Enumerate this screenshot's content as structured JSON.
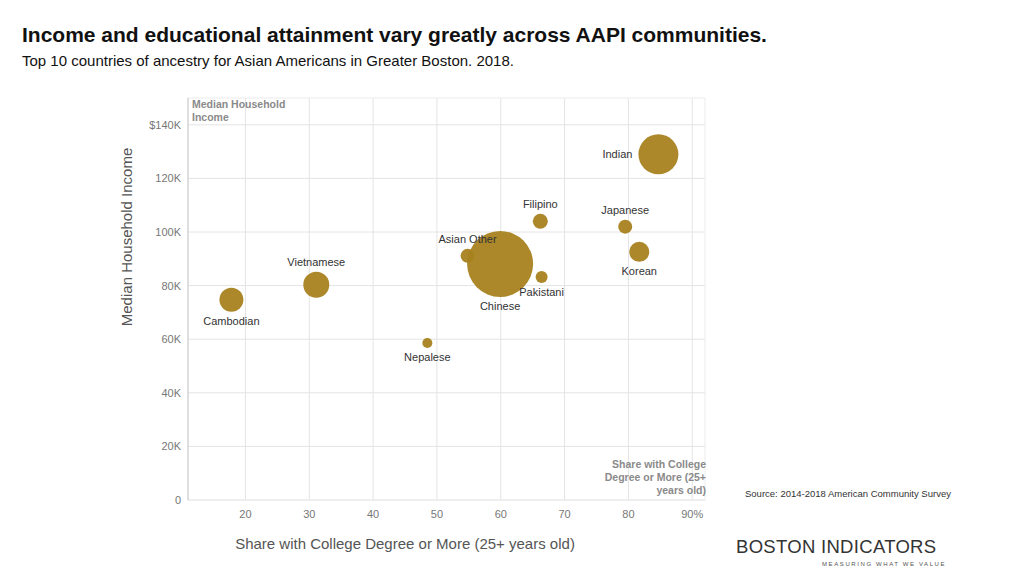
{
  "chart_data": {
    "type": "scatter",
    "title": "Income and educational attainment vary greatly across AAPI communities.",
    "subtitle": "Top 10 countries of ancestry for Asian Americans in Greater Boston. 2018.",
    "xlabel": "Share with College Degree or More (25+ years old)",
    "ylabel": "Median Household Income",
    "annotations": [
      "Median Household Income",
      "Share with College Degree or More (25+ years old)"
    ],
    "source": "Source: 2014-2018 American Community Survey",
    "logo_text": "BOSTON INDICATORS",
    "logo_tagline": "MEASURING WHAT WE VALUE",
    "labels": [
      "Indian",
      "Filipino",
      "Japanese",
      "Korean",
      "Asian Other",
      "Chinese",
      "Pakistani",
      "Vietnamese",
      "Cambodian",
      "Nepalese"
    ],
    "x": [
      84.7,
      66.2,
      79.5,
      81.7,
      54.8,
      59.9,
      66.4,
      31.1,
      17.8,
      48.5
    ],
    "values": [
      129000,
      104000,
      102000,
      92600,
      91100,
      88100,
      83200,
      80300,
      74700,
      58600
    ],
    "sizes": [
      400,
      56,
      49,
      100,
      49,
      1089,
      36,
      169,
      144,
      25
    ],
    "color": "#a8821f",
    "xlim": [
      11,
      92
    ],
    "xticks": [
      20,
      30,
      40,
      50,
      60,
      70,
      80,
      {
        "value": 90,
        "label": "90%"
      }
    ],
    "ylim": [
      0,
      150000
    ],
    "yticks": [
      0,
      {
        "value": 20000,
        "label": "20K"
      },
      {
        "value": 40000,
        "label": "40K"
      },
      {
        "value": 60000,
        "label": "60K"
      },
      {
        "value": 80000,
        "label": "80K"
      },
      {
        "value": 100000,
        "label": "100K"
      },
      {
        "value": 120000,
        "label": "120K"
      },
      {
        "value": 140000,
        "label": "$140K"
      }
    ],
    "grid": true
  }
}
